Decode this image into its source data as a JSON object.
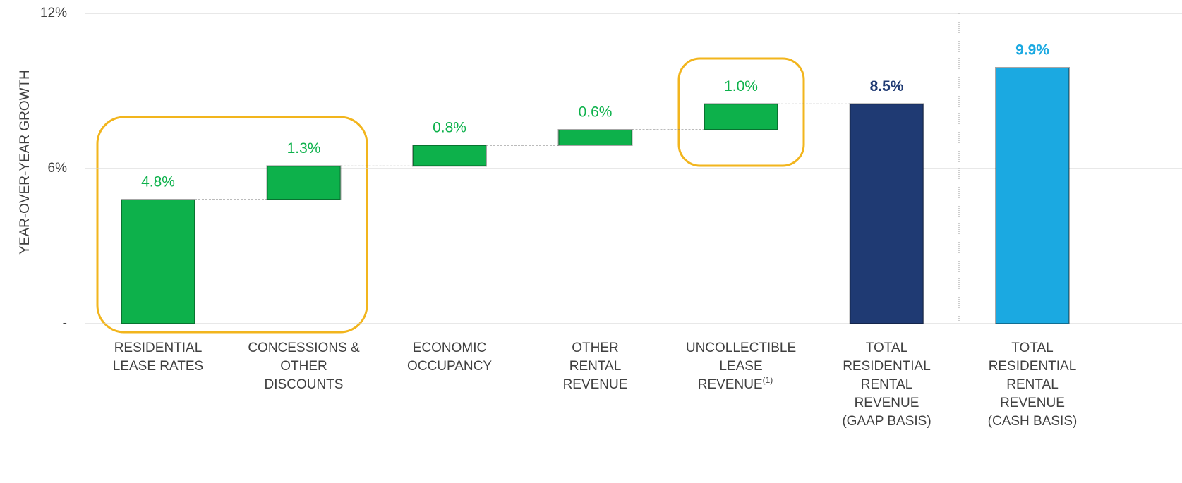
{
  "chart_data": {
    "type": "waterfall",
    "ylabel": "YEAR-OVER-YEAR GROWTH",
    "categories": [
      [
        "RESIDENTIAL",
        "LEASE RATES"
      ],
      [
        "CONCESSIONS &",
        "OTHER",
        "DISCOUNTS"
      ],
      [
        "ECONOMIC",
        "OCCUPANCY"
      ],
      [
        "OTHER",
        "RENTAL",
        "REVENUE"
      ],
      [
        "UNCOLLECTIBLE",
        "LEASE",
        "REVENUE"
      ],
      [
        "TOTAL",
        "RESIDENTIAL",
        "RENTAL",
        "REVENUE",
        "(GAAP BASIS)"
      ],
      [
        "TOTAL",
        "RESIDENTIAL",
        "RENTAL",
        "REVENUE",
        "(CASH BASIS)"
      ]
    ],
    "category_notes": [
      null,
      null,
      null,
      null,
      "(1)",
      null,
      null
    ],
    "values": [
      4.8,
      1.3,
      0.8,
      0.6,
      1.0,
      8.5,
      9.9
    ],
    "value_labels": [
      "4.8%",
      "1.3%",
      "0.8%",
      "0.6%",
      "1.0%",
      "8.5%",
      "9.9%"
    ],
    "kinds": [
      "step",
      "step",
      "step",
      "step",
      "step",
      "total",
      "total"
    ],
    "colors": [
      "#0db14b",
      "#0db14b",
      "#0db14b",
      "#0db14b",
      "#0db14b",
      "#1f3a73",
      "#1ba9e1"
    ],
    "ylim": [
      0,
      12
    ],
    "yticks": [
      {
        "value": 0,
        "label": "-"
      },
      {
        "value": 6,
        "label": "6%"
      },
      {
        "value": 12,
        "label": "12%"
      }
    ],
    "grid": true
  }
}
